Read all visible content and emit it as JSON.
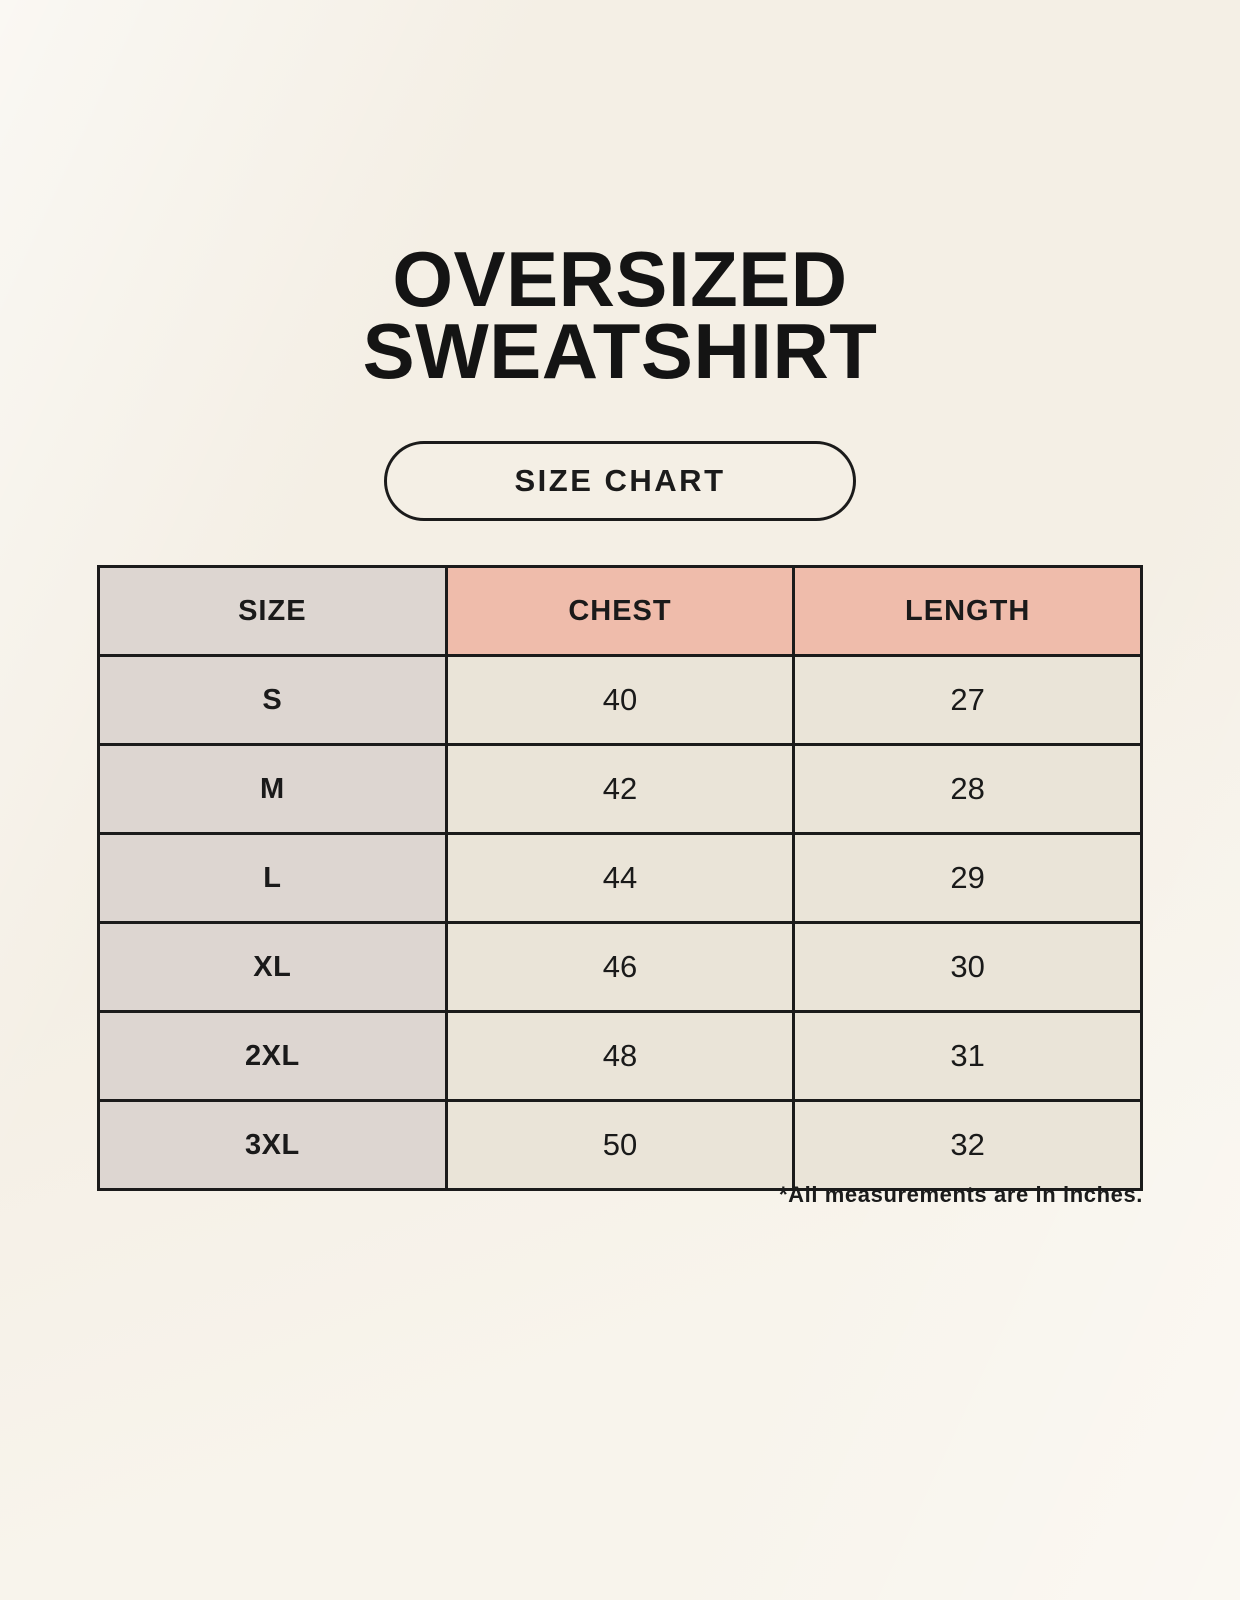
{
  "title": {
    "line1": "OVERSIZED",
    "line2": "SWEATSHIRT"
  },
  "button": {
    "label": "SIZE CHART"
  },
  "footnote": "*All measurements are in inches.",
  "colors": {
    "page_bg": "#f8f4ec",
    "accent_salmon": "#efbcab",
    "column_gray": "#ddd6d1",
    "cell_cream": "#eae4d8",
    "border_black": "#1b1b1b",
    "text_black": "#1a1a1a"
  },
  "chart_data": {
    "type": "table",
    "title": "OVERSIZED SWEATSHIRT SIZE CHART",
    "columns": [
      "SIZE",
      "CHEST",
      "LENGTH"
    ],
    "rows": [
      [
        "S",
        40,
        27
      ],
      [
        "M",
        42,
        28
      ],
      [
        "L",
        44,
        29
      ],
      [
        "XL",
        46,
        30
      ],
      [
        "2XL",
        48,
        31
      ],
      [
        "3XL",
        50,
        32
      ]
    ],
    "units": "inches",
    "layout": "header row top; size labels in left gray column; chest and length header cells salmon; data cells cream; black grid borders"
  }
}
